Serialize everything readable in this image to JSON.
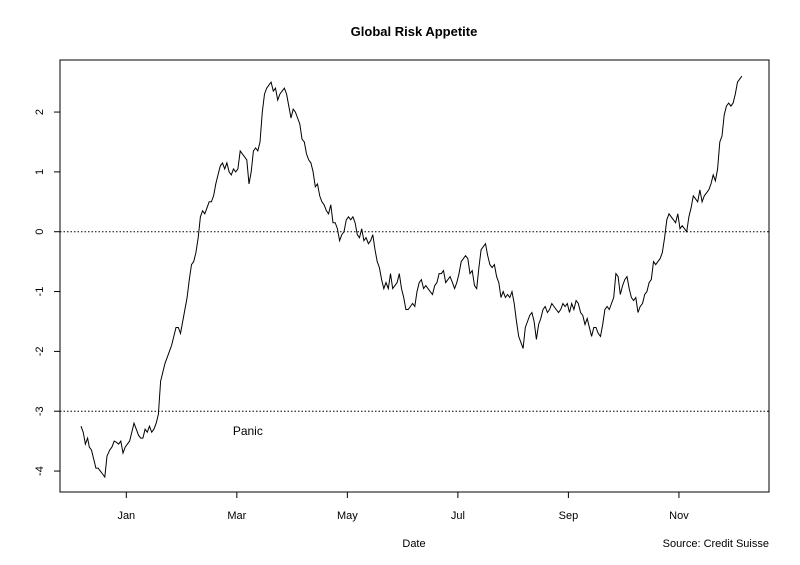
{
  "chart_data": {
    "type": "line",
    "title": "Global Risk Appetite",
    "xlabel": "Date",
    "ylabel": "",
    "source": "Source: Credit Suisse",
    "annotation": {
      "text": "Panic",
      "x": "Mar",
      "y": -3.33
    },
    "x_ticks": [
      {
        "label": "Jan",
        "pos": 1
      },
      {
        "label": "Mar",
        "pos": 3
      },
      {
        "label": "May",
        "pos": 5
      },
      {
        "label": "Jul",
        "pos": 7
      },
      {
        "label": "Sep",
        "pos": 9
      },
      {
        "label": "Nov",
        "pos": 11
      }
    ],
    "y_ticks": [
      {
        "label": "2",
        "value": 2
      },
      {
        "label": "1",
        "value": 1
      },
      {
        "label": "0",
        "value": 0
      },
      {
        "label": "-1",
        "value": -1
      },
      {
        "label": "-2",
        "value": -2
      },
      {
        "label": "-3",
        "value": -3
      },
      {
        "label": "-4",
        "value": -4
      }
    ],
    "xlim": [
      -0.2,
      12.63
    ],
    "ylim": [
      -4.35,
      2.87
    ],
    "reference_lines": [
      0,
      -3
    ],
    "grid": false,
    "legend": "none",
    "series": [
      {
        "x": [
          0.18,
          0.22,
          0.26,
          0.3,
          0.33,
          0.37,
          0.41,
          0.45,
          0.49,
          0.53,
          0.57,
          0.61,
          0.65,
          0.7,
          0.74,
          0.78,
          0.82,
          0.86,
          0.9,
          0.94,
          0.98,
          1.02,
          1.06,
          1.1,
          1.14,
          1.18,
          1.22,
          1.26,
          1.3,
          1.34,
          1.38,
          1.42,
          1.46,
          1.5,
          1.54,
          1.58,
          1.62,
          1.66,
          1.7,
          1.74,
          1.78,
          1.82,
          1.86,
          1.9,
          1.94,
          1.98,
          2.02,
          2.06,
          2.1,
          2.14,
          2.18,
          2.22,
          2.26,
          2.3,
          2.34,
          2.38,
          2.42,
          2.46,
          2.5,
          2.54,
          2.58,
          2.62,
          2.66,
          2.7,
          2.74,
          2.78,
          2.82,
          2.86,
          2.9,
          2.94,
          2.98,
          3.02,
          3.06,
          3.1,
          3.14,
          3.18,
          3.22,
          3.26,
          3.3,
          3.34,
          3.38,
          3.42,
          3.46,
          3.5,
          3.54,
          3.58,
          3.62,
          3.66,
          3.7,
          3.74,
          3.78,
          3.82,
          3.86,
          3.9,
          3.94,
          3.98,
          4.02,
          4.06,
          4.1,
          4.14,
          4.18,
          4.22,
          4.26,
          4.3,
          4.34,
          4.38,
          4.42,
          4.46,
          4.5,
          4.54,
          4.58,
          4.62,
          4.66,
          4.7,
          4.74,
          4.78,
          4.82,
          4.86,
          4.9,
          4.94,
          4.98,
          5.02,
          5.06,
          5.1,
          5.14,
          5.18,
          5.22,
          5.26,
          5.3,
          5.34,
          5.38,
          5.42,
          5.46,
          5.5,
          5.54,
          5.58,
          5.62,
          5.66,
          5.7,
          5.74,
          5.78,
          5.82,
          5.86,
          5.9,
          5.94,
          5.98,
          6.02,
          6.06,
          6.1,
          6.14,
          6.18,
          6.22,
          6.26,
          6.3,
          6.34,
          6.38,
          6.42,
          6.46,
          6.5,
          6.54,
          6.58,
          6.62,
          6.66,
          6.7,
          6.74,
          6.78,
          6.82,
          6.86,
          6.9,
          6.94,
          6.98,
          7.02,
          7.06,
          7.1,
          7.14,
          7.18,
          7.22,
          7.26,
          7.3,
          7.34,
          7.38,
          7.42,
          7.46,
          7.5,
          7.54,
          7.58,
          7.62,
          7.66,
          7.7,
          7.74,
          7.78,
          7.82,
          7.86,
          7.9,
          7.94,
          7.98,
          8.02,
          8.06,
          8.1,
          8.14,
          8.18,
          8.22,
          8.26,
          8.3,
          8.34,
          8.38,
          8.42,
          8.46,
          8.5,
          8.54,
          8.58,
          8.62,
          8.66,
          8.7,
          8.74,
          8.78,
          8.82,
          8.86,
          8.9,
          8.94,
          8.98,
          9.02,
          9.06,
          9.1,
          9.14,
          9.18,
          9.22,
          9.26,
          9.3,
          9.34,
          9.38,
          9.42,
          9.46,
          9.5,
          9.54,
          9.58,
          9.62,
          9.66,
          9.7,
          9.74,
          9.78,
          9.82,
          9.86,
          9.9,
          9.94,
          9.98,
          10.02,
          10.06,
          10.1,
          10.14,
          10.18,
          10.22,
          10.26,
          10.3,
          10.34,
          10.38,
          10.42,
          10.46,
          10.5,
          10.54,
          10.58,
          10.62,
          10.66,
          10.7,
          10.74,
          10.78,
          10.82,
          10.86,
          10.9,
          10.94,
          10.98,
          11.02,
          11.06,
          11.1,
          11.14,
          11.18,
          11.22,
          11.26,
          11.3,
          11.34,
          11.38,
          11.42,
          11.46,
          11.5,
          11.54,
          11.58,
          11.62,
          11.66,
          11.7,
          11.74,
          11.78,
          11.82,
          11.86,
          11.9,
          11.94,
          11.98,
          12.02,
          12.06,
          12.1,
          12.14
        ],
        "y": [
          -3.25,
          -3.35,
          -3.55,
          -3.45,
          -3.6,
          -3.65,
          -3.8,
          -3.95,
          -3.95,
          -4.0,
          -4.05,
          -4.1,
          -3.75,
          -3.65,
          -3.6,
          -3.5,
          -3.52,
          -3.55,
          -3.5,
          -3.7,
          -3.6,
          -3.55,
          -3.5,
          -3.35,
          -3.2,
          -3.3,
          -3.4,
          -3.45,
          -3.45,
          -3.3,
          -3.35,
          -3.25,
          -3.35,
          -3.3,
          -3.2,
          -3.05,
          -2.5,
          -2.35,
          -2.2,
          -2.1,
          -2.0,
          -1.9,
          -1.75,
          -1.6,
          -1.6,
          -1.7,
          -1.5,
          -1.3,
          -1.1,
          -0.8,
          -0.55,
          -0.5,
          -0.35,
          -0.1,
          0.25,
          0.35,
          0.3,
          0.4,
          0.5,
          0.5,
          0.6,
          0.8,
          0.95,
          1.1,
          1.15,
          1.05,
          1.15,
          1.0,
          0.95,
          1.05,
          1.0,
          1.05,
          1.35,
          1.3,
          1.25,
          1.2,
          0.8,
          1.0,
          1.35,
          1.4,
          1.35,
          1.5,
          2.0,
          2.3,
          2.4,
          2.45,
          2.5,
          2.35,
          2.4,
          2.2,
          2.3,
          2.35,
          2.4,
          2.3,
          2.1,
          1.9,
          2.05,
          2.0,
          1.9,
          1.8,
          1.55,
          1.5,
          1.3,
          1.2,
          1.15,
          1.0,
          0.75,
          0.8,
          0.6,
          0.5,
          0.45,
          0.35,
          0.3,
          0.45,
          0.15,
          0.15,
          0.05,
          -0.15,
          -0.05,
          0.0,
          0.2,
          0.25,
          0.2,
          0.25,
          0.15,
          -0.05,
          -0.1,
          0.05,
          -0.15,
          -0.1,
          -0.2,
          -0.15,
          -0.05,
          -0.3,
          -0.5,
          -0.6,
          -0.8,
          -0.95,
          -0.85,
          -0.95,
          -0.7,
          -0.95,
          -0.9,
          -0.85,
          -0.7,
          -0.95,
          -1.1,
          -1.3,
          -1.3,
          -1.25,
          -1.2,
          -1.25,
          -1.0,
          -0.85,
          -0.8,
          -0.95,
          -0.9,
          -0.95,
          -1.0,
          -1.05,
          -0.9,
          -0.85,
          -0.7,
          -0.7,
          -0.65,
          -0.85,
          -0.8,
          -0.75,
          -0.85,
          -0.95,
          -0.85,
          -0.7,
          -0.5,
          -0.45,
          -0.4,
          -0.45,
          -0.7,
          -0.65,
          -0.9,
          -0.95,
          -0.6,
          -0.3,
          -0.25,
          -0.2,
          -0.4,
          -0.55,
          -0.6,
          -0.55,
          -0.75,
          -0.85,
          -1.1,
          -1.0,
          -1.1,
          -1.05,
          -1.1,
          -1.0,
          -1.2,
          -1.5,
          -1.75,
          -1.85,
          -1.95,
          -1.6,
          -1.5,
          -1.4,
          -1.35,
          -1.5,
          -1.8,
          -1.55,
          -1.45,
          -1.3,
          -1.25,
          -1.35,
          -1.3,
          -1.2,
          -1.25,
          -1.3,
          -1.35,
          -1.3,
          -1.2,
          -1.25,
          -1.2,
          -1.35,
          -1.2,
          -1.3,
          -1.15,
          -1.2,
          -1.35,
          -1.4,
          -1.55,
          -1.45,
          -1.6,
          -1.75,
          -1.6,
          -1.6,
          -1.7,
          -1.75,
          -1.55,
          -1.3,
          -1.25,
          -1.3,
          -1.2,
          -1.1,
          -0.7,
          -0.75,
          -1.05,
          -0.9,
          -0.8,
          -0.75,
          -0.95,
          -1.1,
          -1.15,
          -1.1,
          -1.35,
          -1.25,
          -1.2,
          -1.05,
          -1.0,
          -0.85,
          -0.8,
          -0.5,
          -0.55,
          -0.5,
          -0.45,
          -0.35,
          -0.1,
          0.2,
          0.3,
          0.25,
          0.2,
          0.15,
          0.3,
          0.05,
          0.1,
          0.05,
          0.0,
          0.25,
          0.4,
          0.6,
          0.55,
          0.5,
          0.7,
          0.5,
          0.6,
          0.65,
          0.7,
          0.8,
          0.95,
          0.85,
          1.05,
          1.5,
          1.6,
          1.95,
          2.1,
          2.15,
          2.1,
          2.15,
          2.3,
          2.5,
          2.55,
          2.6
        ]
      }
    ]
  }
}
